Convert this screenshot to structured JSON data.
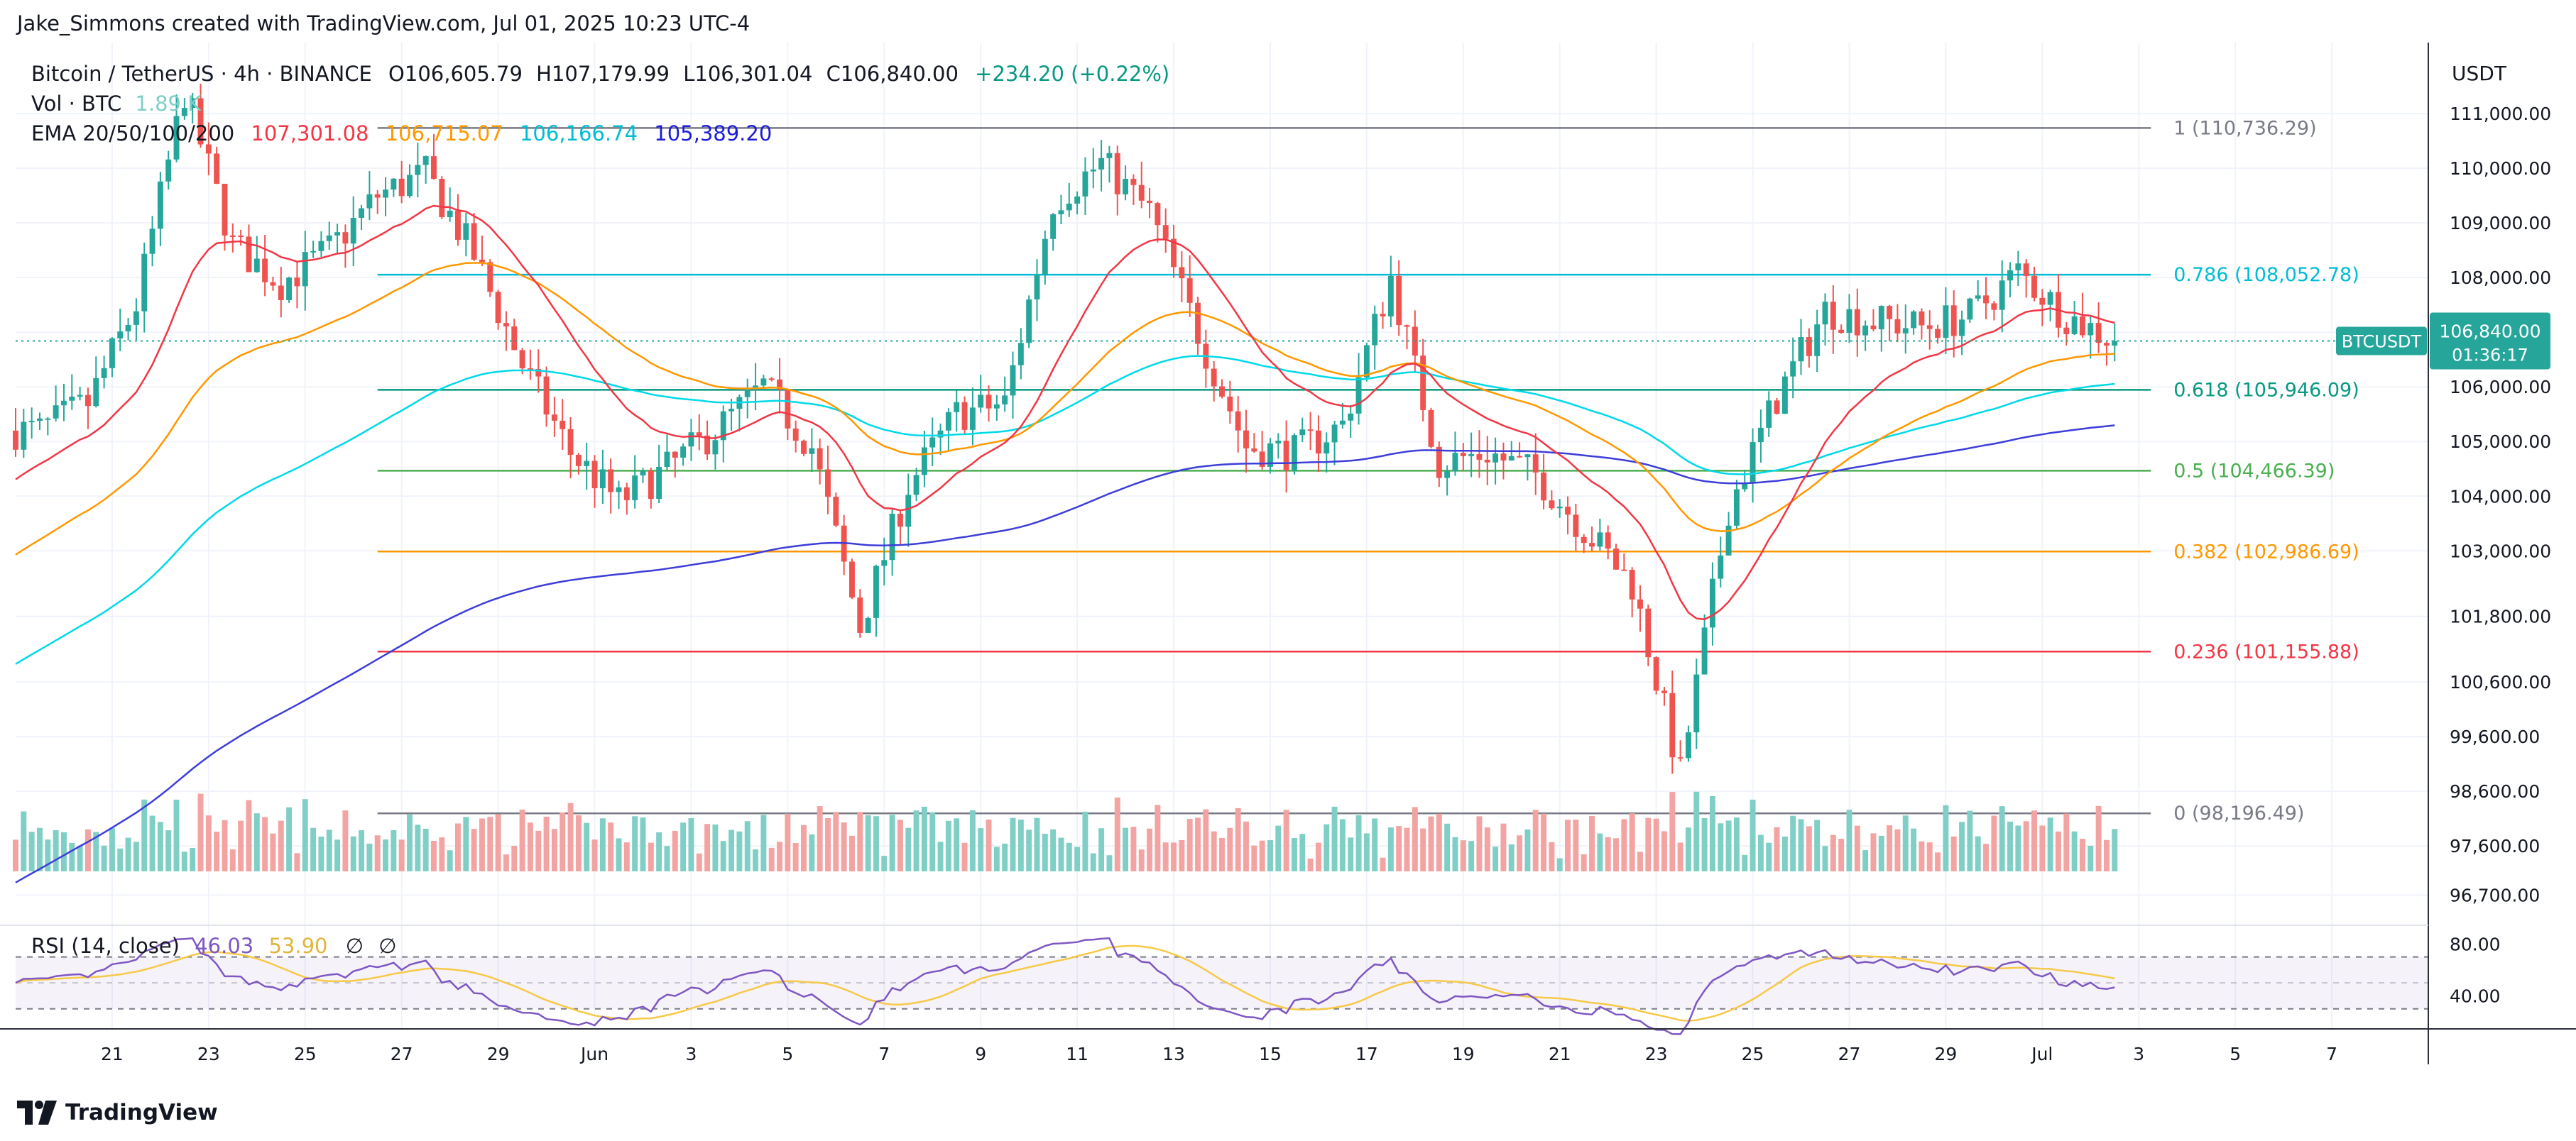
{
  "credit": "Jake_Simmons created with TradingView.com, Jul 01, 2025 10:23 UTC-4",
  "header": {
    "symbol": "Bitcoin / TetherUS · 4h · BINANCE",
    "o_label": "O",
    "o_value": "106,605.79",
    "h_label": "H",
    "h_value": "107,179.99",
    "l_label": "L",
    "l_value": "106,301.04",
    "c_label": "C",
    "c_value": "106,840.00",
    "change": "+234.20 (+0.22%)",
    "vol_label": "Vol · BTC",
    "vol_value": "1.89 K",
    "ema_label": "EMA 20/50/100/200",
    "ema_values": [
      "107,301.08",
      "106,715.07",
      "106,166.74",
      "105,389.20"
    ]
  },
  "colors": {
    "up": "#26a69a",
    "down": "#ef5350",
    "up_vol": "#7fcfc6",
    "down_vol": "#f3a3a1",
    "ema20": "#f23645",
    "ema50": "#ff9800",
    "ema100": "#00d9e8",
    "ema200": "#3d3dd9",
    "rsi": "#7e57c2",
    "rsi_ma": "#f7c948",
    "badge": "#26a69a"
  },
  "price_axis": {
    "currency": "USDT",
    "labels": [
      "111,000.00",
      "110,000.00",
      "109,000.00",
      "108,000.00",
      "107,000.00",
      "106,000.00",
      "105,000.00",
      "104,000.00",
      "103,000.00",
      "101,800.00",
      "100,600.00",
      "99,600.00",
      "98,600.00",
      "97,600.00",
      "96,700.00"
    ],
    "badge_symbol": "BTCUSDT",
    "badge_price": "106,840.00",
    "badge_countdown": "01:36:17"
  },
  "rsi": {
    "label": "RSI (14, close)",
    "value1": "46.03",
    "value2": "53.90",
    "icons": [
      "∅",
      "∅"
    ],
    "axis_labels": [
      "80.00",
      "40.00"
    ]
  },
  "time_axis": {
    "labels": [
      "21",
      "23",
      "25",
      "27",
      "29",
      "Jun",
      "3",
      "5",
      "7",
      "9",
      "11",
      "13",
      "15",
      "17",
      "19",
      "21",
      "23",
      "25",
      "27",
      "29",
      "Jul",
      "3",
      "5",
      "7"
    ]
  },
  "footer": {
    "brand": "TradingView"
  },
  "chart_data": {
    "type": "candlestick",
    "title": "Bitcoin / TetherUS · 4h · BINANCE",
    "x_range": [
      "2025-05-19",
      "2025-07-08"
    ],
    "ylim": [
      96200,
      112300
    ],
    "fib_levels": [
      {
        "ratio": "1",
        "price": 110736.29,
        "label": "1 (110,736.29)",
        "color": "#787b86"
      },
      {
        "ratio": "0.786",
        "price": 108052.78,
        "label": "0.786 (108,052.78)",
        "color": "#00bcd4"
      },
      {
        "ratio": "0.618",
        "price": 105946.09,
        "label": "0.618 (105,946.09)",
        "color": "#089981"
      },
      {
        "ratio": "0.5",
        "price": 104466.39,
        "label": "0.5 (104,466.39)",
        "color": "#4caf50"
      },
      {
        "ratio": "0.382",
        "price": 102986.69,
        "label": "0.382 (102,986.69)",
        "color": "#ff9800"
      },
      {
        "ratio": "0.236",
        "price": 101155.88,
        "label": "0.236 (101,155.88)",
        "color": "#f23645"
      },
      {
        "ratio": "0",
        "price": 98196.49,
        "label": "0 (98,196.49)",
        "color": "#787b86"
      }
    ],
    "close_anchors": [
      [
        "2025-05-19",
        105200
      ],
      [
        "2025-05-20",
        105700
      ],
      [
        "2025-05-21",
        107500
      ],
      [
        "2025-05-22",
        111400
      ],
      [
        "2025-05-23",
        108600
      ],
      [
        "2025-05-24",
        107900
      ],
      [
        "2025-05-25",
        108500
      ],
      [
        "2025-05-26",
        109500
      ],
      [
        "2025-05-27",
        109900
      ],
      [
        "2025-05-28",
        108400
      ],
      [
        "2025-05-29",
        106400
      ],
      [
        "2025-05-30",
        104800
      ],
      [
        "2025-05-31",
        103900
      ],
      [
        "2025-06-01",
        104500
      ],
      [
        "2025-06-02",
        105200
      ],
      [
        "2025-06-03",
        106000
      ],
      [
        "2025-06-04",
        104900
      ],
      [
        "2025-06-05",
        101600
      ],
      [
        "2025-06-06",
        104200
      ],
      [
        "2025-06-07",
        105500
      ],
      [
        "2025-06-08",
        105700
      ],
      [
        "2025-06-09",
        109400
      ],
      [
        "2025-06-10",
        110100
      ],
      [
        "2025-06-11",
        109200
      ],
      [
        "2025-06-12",
        107000
      ],
      [
        "2025-06-13",
        104900
      ],
      [
        "2025-06-14",
        104800
      ],
      [
        "2025-06-15",
        105300
      ],
      [
        "2025-06-16",
        108000
      ],
      [
        "2025-06-17",
        104600
      ],
      [
        "2025-06-18",
        104800
      ],
      [
        "2025-06-19",
        104400
      ],
      [
        "2025-06-20",
        103400
      ],
      [
        "2025-06-21",
        102400
      ],
      [
        "2025-06-22",
        98900
      ],
      [
        "2025-06-23",
        103800
      ],
      [
        "2025-06-24",
        105800
      ],
      [
        "2025-06-25",
        107400
      ],
      [
        "2025-06-26",
        107200
      ],
      [
        "2025-06-27",
        107100
      ],
      [
        "2025-06-28",
        107300
      ],
      [
        "2025-06-29",
        108100
      ],
      [
        "2025-06-30",
        107300
      ],
      [
        "2025-07-01",
        106840
      ]
    ],
    "rsi_range": [
      20,
      90
    ],
    "rsi_bands": [
      70,
      30
    ]
  }
}
